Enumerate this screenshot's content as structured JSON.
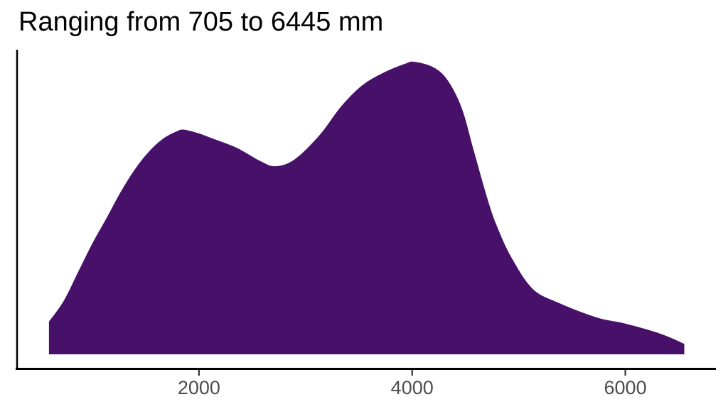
{
  "chart_data": {
    "type": "area",
    "variant": "kernel-density",
    "title": "Ranging from 705 to 6445 mm",
    "xlabel": "",
    "ylabel": "",
    "units": "mm",
    "data_range_min_mm": 705,
    "data_range_max_mm": 6445,
    "x_ticks": [
      2000,
      4000,
      6000
    ],
    "xlim_mm": [
      280,
      6850
    ],
    "ylim_relative_density": [
      -0.05,
      1.04
    ],
    "grid": false,
    "legend": "none",
    "peaks_mm": [
      1860,
      4020
    ],
    "valley_mm": 2720,
    "series": [
      {
        "name": "density",
        "x_mm": [
          593,
          733,
          867,
          1000,
          1133,
          1267,
          1400,
          1533,
          1667,
          1790,
          1860,
          2000,
          2133,
          2353,
          2580,
          2720,
          2900,
          3133,
          3333,
          3533,
          3733,
          3933,
          4020,
          4200,
          4333,
          4467,
          4580,
          4713,
          4800,
          4933,
          5133,
          5380,
          5733,
          6000,
          6333,
          6553
        ],
        "density_relative": [
          0.112,
          0.184,
          0.282,
          0.379,
          0.466,
          0.556,
          0.633,
          0.694,
          0.738,
          0.762,
          0.768,
          0.755,
          0.737,
          0.706,
          0.66,
          0.643,
          0.667,
          0.75,
          0.847,
          0.92,
          0.963,
          0.993,
          1.0,
          0.981,
          0.937,
          0.84,
          0.694,
          0.524,
          0.434,
          0.33,
          0.223,
          0.175,
          0.126,
          0.105,
          0.07,
          0.036
        ]
      }
    ],
    "colors": {
      "fill": "#471069",
      "axis": "#000000",
      "tick": "#333333",
      "tick_label": "#4D4D4D",
      "title": "#000000",
      "background": "#FFFFFF"
    }
  }
}
